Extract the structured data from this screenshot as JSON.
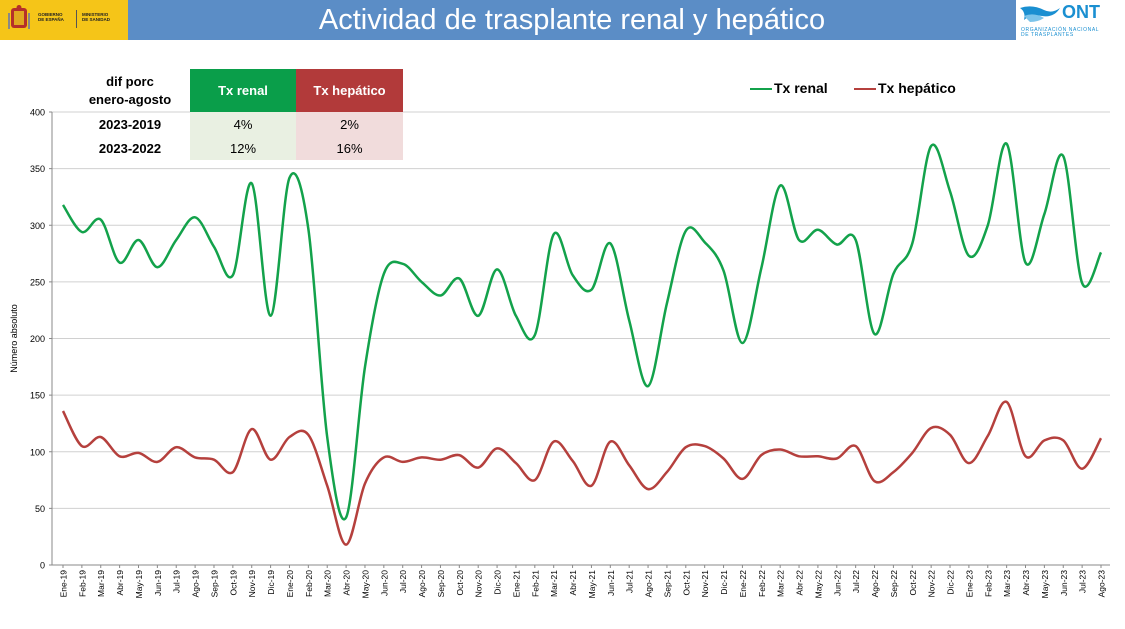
{
  "header": {
    "title": "Actividad de trasplante renal y hepático",
    "gov_line1": [
      "GOBIERNO",
      "DE ESPAÑA"
    ],
    "gov_line2": [
      "MINISTERIO",
      "DE SANIDAD"
    ],
    "ont_logo": "ONT",
    "ont_sub": [
      "ORGANIZACIÓN NACIONAL",
      "DE TRASPLANTES"
    ]
  },
  "table": {
    "header_label": [
      "dif porc",
      "enero-agosto"
    ],
    "col_renal": "Tx renal",
    "col_hepatico": "Tx hepático",
    "rows": [
      {
        "label": "2023-2019",
        "renal": "4%",
        "hepatico": "2%"
      },
      {
        "label": "2023-2022",
        "renal": "12%",
        "hepatico": "16%"
      }
    ]
  },
  "colors": {
    "renal": "#13a24b",
    "hepatico": "#b5403d",
    "grid": "#d0d0d0",
    "title_bar": "#5b8dc6"
  },
  "chart_data": {
    "type": "line",
    "title": "",
    "xlabel": "",
    "ylabel": "Número absoluto",
    "ylim": [
      0,
      400
    ],
    "yticks": [
      0,
      50,
      100,
      150,
      200,
      250,
      300,
      350,
      400
    ],
    "grid": true,
    "legend_position": "top-right",
    "categories": [
      "Ene-19",
      "Feb-19",
      "Mar-19",
      "Abr-19",
      "May-19",
      "Jun-19",
      "Jul-19",
      "Ago-19",
      "Sep-19",
      "Oct-19",
      "Nov-19",
      "Dic-19",
      "Ene-20",
      "Feb-20",
      "Mar-20",
      "Abr-20",
      "May-20",
      "Jun-20",
      "Jul-20",
      "Ago-20",
      "Sep-20",
      "Oct-20",
      "Nov-20",
      "Dic-20",
      "Ene-21",
      "Feb-21",
      "Mar-21",
      "Abr-21",
      "May-21",
      "Jun-21",
      "Jul-21",
      "Ago-21",
      "Sep-21",
      "Oct-21",
      "Nov-21",
      "Dic-21",
      "Ene-22",
      "Feb-22",
      "Mar-22",
      "Abr-22",
      "May-22",
      "Jun-22",
      "Jul-22",
      "Ago-22",
      "Sep-22",
      "Oct-22",
      "Nov-22",
      "Dic-22",
      "Ene-23",
      "Feb-23",
      "Mar-23",
      "Abr-23",
      "May-23",
      "Jun-23",
      "Jul-23",
      "Ago-23"
    ],
    "series": [
      {
        "name": "Tx renal",
        "values": [
          318,
          294,
          305,
          267,
          287,
          263,
          287,
          307,
          281,
          256,
          337,
          220,
          342,
          297,
          113,
          42,
          175,
          257,
          266,
          250,
          238,
          253,
          220,
          261,
          220,
          203,
          292,
          256,
          243,
          284,
          216,
          158,
          231,
          295,
          285,
          260,
          196,
          262,
          335,
          287,
          296,
          283,
          287,
          204,
          257,
          284,
          370,
          330,
          273,
          300,
          372,
          267,
          310,
          361,
          249,
          276
        ]
      },
      {
        "name": "Tx hepático",
        "values": [
          136,
          105,
          113,
          96,
          99,
          91,
          104,
          95,
          93,
          82,
          120,
          93,
          113,
          115,
          70,
          18,
          72,
          95,
          91,
          95,
          93,
          97,
          86,
          103,
          90,
          75,
          109,
          92,
          70,
          109,
          88,
          67,
          82,
          104,
          105,
          94,
          76,
          97,
          102,
          96,
          96,
          94,
          105,
          74,
          82,
          99,
          121,
          115,
          90,
          114,
          144,
          96,
          110,
          110,
          85,
          112
        ]
      }
    ]
  }
}
